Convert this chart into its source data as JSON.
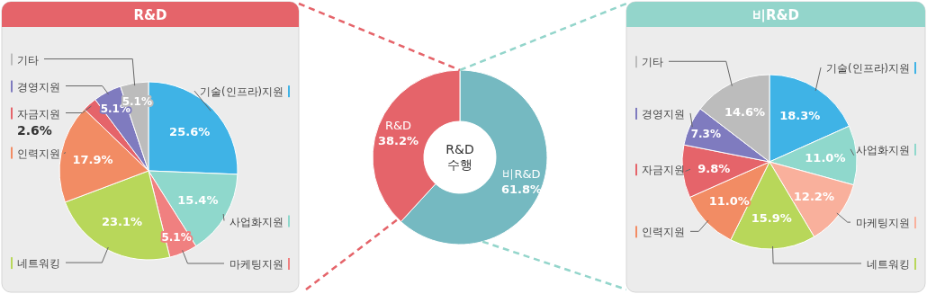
{
  "chart_data": [
    {
      "type": "pie",
      "title": "R&D",
      "legend": "left",
      "categories": [
        "기술(인프라)지원",
        "사업화지원",
        "마케팅지원",
        "네트워킹",
        "인력지원",
        "자금지원",
        "경영지원",
        "기타"
      ],
      "values": [
        25.6,
        15.4,
        5.1,
        23.1,
        17.9,
        2.6,
        5.1,
        5.1
      ],
      "colors": [
        "#3fb3e6",
        "#8fd8cc",
        "#f08080",
        "#b8d75a",
        "#f28c64",
        "#e5646a",
        "#7f7bbf",
        "#bcbcbc"
      ],
      "value_labels": [
        "25.6%",
        "15.4%",
        "5.1%",
        "23.1%",
        "17.9%",
        "2.6%",
        "5.1%",
        "5.1%"
      ]
    },
    {
      "type": "donut",
      "title": "R&D 수행",
      "categories": [
        "비R&D",
        "R&D"
      ],
      "values": [
        61.8,
        38.2
      ],
      "colors": [
        "#75b9c1",
        "#e5646a"
      ],
      "value_labels": [
        "61.8%",
        "38.2%"
      ]
    },
    {
      "type": "pie",
      "title": "비R&D",
      "legend": "left",
      "categories": [
        "기술(인프라)지원",
        "사업화지원",
        "마케팅지원",
        "네트워킹",
        "인력지원",
        "자금지원",
        "경영지원",
        "기타"
      ],
      "values": [
        18.3,
        11.0,
        12.2,
        15.9,
        11.0,
        9.8,
        7.3,
        14.6
      ],
      "colors": [
        "#3fb3e6",
        "#8fd8cc",
        "#f9b09c",
        "#b8d75a",
        "#f28c64",
        "#e5646a",
        "#7f7bbf",
        "#bcbcbc"
      ],
      "value_labels": [
        "18.3%",
        "11.0%",
        "12.2%",
        "15.9%",
        "11.0%",
        "9.8%",
        "7.3%",
        "14.6%"
      ]
    }
  ]
}
